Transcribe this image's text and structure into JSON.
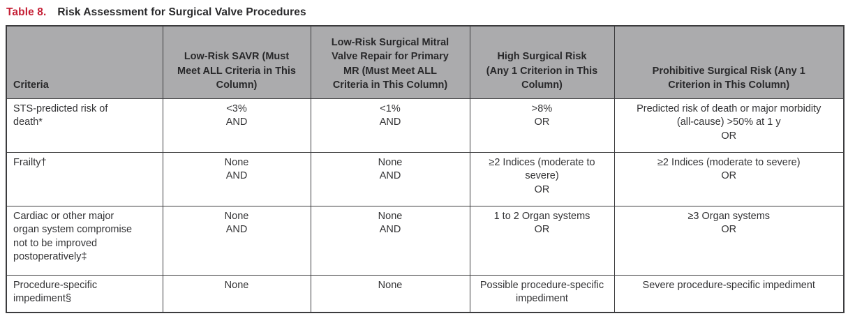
{
  "title": {
    "number": "Table 8.",
    "text": "Risk Assessment for Surgical Valve Procedures"
  },
  "colors": {
    "title_accent": "#c51f35",
    "header_background": "#ababad",
    "table_border": "#3c3c3e",
    "body_text": "#333335"
  },
  "table": {
    "columns": [
      {
        "header": "Criteria"
      },
      {
        "header": "Low-Risk SAVR (Must\nMeet ALL Criteria in This\nColumn)"
      },
      {
        "header": "Low-Risk Surgical Mitral\nValve Repair for Primary\nMR (Must Meet ALL\nCriteria in This Column)"
      },
      {
        "header": "High Surgical Risk\n(Any 1 Criterion in This\nColumn)"
      },
      {
        "header": "Prohibitive Surgical Risk (Any 1\nCriterion in This Column)"
      }
    ],
    "rows": [
      {
        "criteria": "STS-predicted risk of\ndeath*",
        "cells": [
          "<3%\nAND",
          "<1%\nAND",
          ">8%\nOR",
          "Predicted risk of death or major morbidity\n(all-cause) >50% at 1 y\nOR"
        ]
      },
      {
        "criteria": "Frailty†",
        "cells": [
          "None\nAND",
          "None\nAND",
          "≥2 Indices (moderate to\nsevere)\nOR",
          "≥2 Indices (moderate to severe)\nOR"
        ]
      },
      {
        "criteria": "Cardiac or other major\norgan system compromise\nnot to be improved\npostoperatively‡",
        "cells": [
          "None\nAND",
          "None\nAND",
          "1 to 2 Organ systems\nOR",
          "≥3 Organ systems\nOR"
        ]
      },
      {
        "criteria": "Procedure-specific\nimpediment§",
        "cells": [
          "None",
          "None",
          "Possible procedure-specific\nimpediment",
          "Severe procedure-specific impediment"
        ]
      }
    ]
  }
}
